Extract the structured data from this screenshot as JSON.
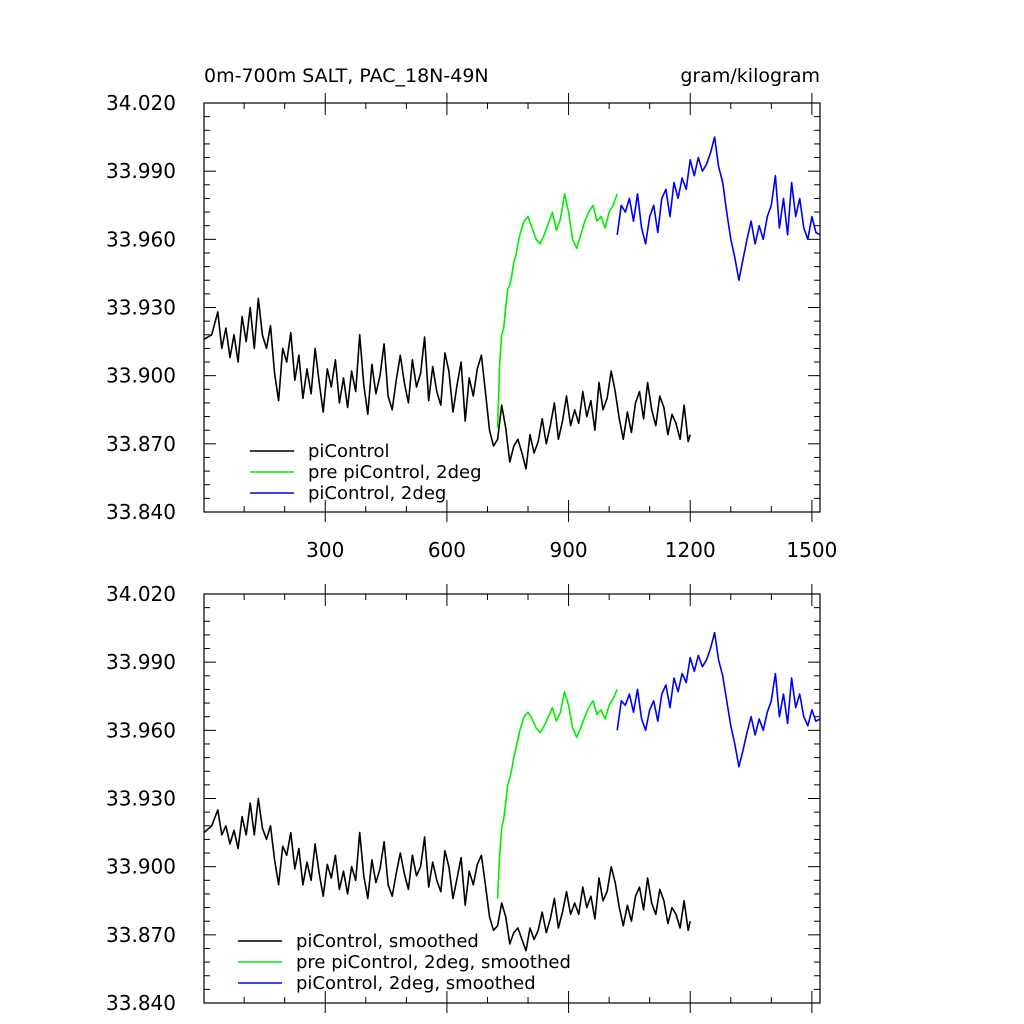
{
  "colors": {
    "piControl": "#000000",
    "prePiControl2deg": "#00ee00",
    "piControl2deg": "#0000ee"
  },
  "chart_data": [
    {
      "type": "line",
      "title_left": "0m-700m SALT, PAC_18N-49N",
      "title_right": "gram/kilogram",
      "xlim": [
        1,
        1520
      ],
      "ylim": [
        33.84,
        34.02
      ],
      "xticks": [
        300,
        600,
        900,
        1200,
        1500
      ],
      "yticks": [
        33.84,
        33.87,
        33.9,
        33.93,
        33.96,
        33.99,
        34.02
      ],
      "ytick_labels": [
        "33.840",
        "33.870",
        "33.900",
        "33.930",
        "33.960",
        "33.990",
        "34.020"
      ],
      "legend_position": "bottom-left",
      "series": [
        {
          "name": "piControl",
          "color": "#000000",
          "x": [
            1,
            20,
            35,
            45,
            55,
            65,
            75,
            85,
            95,
            105,
            115,
            125,
            135,
            145,
            155,
            165,
            175,
            185,
            195,
            205,
            215,
            225,
            235,
            245,
            255,
            265,
            275,
            285,
            295,
            305,
            315,
            325,
            335,
            345,
            355,
            365,
            375,
            385,
            395,
            405,
            415,
            425,
            435,
            445,
            455,
            465,
            475,
            485,
            495,
            505,
            515,
            525,
            535,
            545,
            555,
            565,
            575,
            585,
            595,
            605,
            615,
            625,
            635,
            645,
            655,
            665,
            675,
            685,
            695,
            705,
            715,
            725,
            735,
            745,
            755,
            765,
            775,
            785,
            795,
            805,
            815,
            825,
            835,
            845,
            855,
            865,
            875,
            885,
            895,
            905,
            915,
            925,
            935,
            945,
            955,
            965,
            975,
            985,
            995,
            1005,
            1015,
            1025,
            1035,
            1045,
            1055,
            1065,
            1075,
            1085,
            1095,
            1105,
            1115,
            1125,
            1135,
            1145,
            1155,
            1165,
            1175,
            1185,
            1195,
            1200
          ],
          "y": [
            33.916,
            33.918,
            33.928,
            33.912,
            33.921,
            33.908,
            33.918,
            33.906,
            33.926,
            33.915,
            33.93,
            33.912,
            33.934,
            33.918,
            33.912,
            33.922,
            33.901,
            33.889,
            33.912,
            33.906,
            33.919,
            33.898,
            33.909,
            33.89,
            33.903,
            33.892,
            33.912,
            33.897,
            33.884,
            33.903,
            33.895,
            33.907,
            33.888,
            33.899,
            33.886,
            33.902,
            33.893,
            33.918,
            33.896,
            33.883,
            33.905,
            33.892,
            33.9,
            33.914,
            33.891,
            33.885,
            33.898,
            33.909,
            33.897,
            33.888,
            33.907,
            33.895,
            33.901,
            33.917,
            33.889,
            33.904,
            33.893,
            33.887,
            33.91,
            33.902,
            33.884,
            33.896,
            33.906,
            33.88,
            33.899,
            33.891,
            33.903,
            33.909,
            33.893,
            33.876,
            33.869,
            33.872,
            33.887,
            33.877,
            33.862,
            33.869,
            33.872,
            33.866,
            33.859,
            33.874,
            33.866,
            33.871,
            33.881,
            33.87,
            33.878,
            33.888,
            33.872,
            33.88,
            33.891,
            33.878,
            33.885,
            33.879,
            33.893,
            33.882,
            33.889,
            33.876,
            33.897,
            33.885,
            33.89,
            33.902,
            33.893,
            33.881,
            33.872,
            33.884,
            33.875,
            33.888,
            33.893,
            33.881,
            33.897,
            33.885,
            33.878,
            33.891,
            33.886,
            33.874,
            33.883,
            33.879,
            33.872,
            33.887,
            33.871,
            33.874
          ]
        },
        {
          "name": "pre piControl, 2deg",
          "color": "#00ee00",
          "x": [
            725,
            730,
            735,
            740,
            745,
            750,
            755,
            760,
            765,
            770,
            775,
            780,
            785,
            790,
            800,
            810,
            820,
            830,
            840,
            850,
            860,
            870,
            880,
            890,
            900,
            910,
            920,
            930,
            940,
            950,
            960,
            970,
            980,
            990,
            1000,
            1010,
            1020
          ],
          "y": [
            33.877,
            33.905,
            33.918,
            33.921,
            33.93,
            33.938,
            33.94,
            33.944,
            33.95,
            33.953,
            33.958,
            33.962,
            33.965,
            33.968,
            33.97,
            33.965,
            33.96,
            33.958,
            33.962,
            33.967,
            33.972,
            33.964,
            33.969,
            33.98,
            33.972,
            33.96,
            33.956,
            33.962,
            33.968,
            33.972,
            33.975,
            33.968,
            33.97,
            33.965,
            33.972,
            33.975,
            33.98
          ]
        },
        {
          "name": "piControl, 2deg",
          "color": "#0000ee",
          "x": [
            1020,
            1030,
            1040,
            1050,
            1060,
            1070,
            1080,
            1090,
            1100,
            1110,
            1120,
            1130,
            1140,
            1150,
            1160,
            1170,
            1180,
            1190,
            1200,
            1210,
            1220,
            1230,
            1240,
            1250,
            1260,
            1270,
            1280,
            1290,
            1300,
            1310,
            1320,
            1330,
            1340,
            1350,
            1360,
            1370,
            1380,
            1390,
            1400,
            1410,
            1420,
            1430,
            1440,
            1450,
            1460,
            1470,
            1480,
            1490,
            1500,
            1510,
            1520
          ],
          "y": [
            33.962,
            33.975,
            33.972,
            33.978,
            33.968,
            33.98,
            33.965,
            33.958,
            33.97,
            33.975,
            33.963,
            33.978,
            33.982,
            33.97,
            33.985,
            33.978,
            33.987,
            33.982,
            33.995,
            33.988,
            33.996,
            33.99,
            33.993,
            33.998,
            34.005,
            33.992,
            33.985,
            33.972,
            33.96,
            33.952,
            33.942,
            33.951,
            33.96,
            33.968,
            33.958,
            33.966,
            33.96,
            33.97,
            33.975,
            33.988,
            33.965,
            33.978,
            33.962,
            33.985,
            33.97,
            33.978,
            33.965,
            33.96,
            33.97,
            33.963,
            33.962
          ]
        }
      ],
      "legend": [
        {
          "label": "piControl",
          "color": "#000000"
        },
        {
          "label": "pre piControl, 2deg",
          "color": "#00ee00"
        },
        {
          "label": "piControl, 2deg",
          "color": "#0000ee"
        }
      ]
    },
    {
      "type": "line",
      "xlim": [
        1,
        1520
      ],
      "ylim": [
        33.84,
        34.02
      ],
      "xticks": [
        300,
        600,
        900,
        1200,
        1500
      ],
      "yticks": [
        33.84,
        33.87,
        33.9,
        33.93,
        33.96,
        33.99,
        34.02
      ],
      "ytick_labels": [
        "33.840",
        "33.870",
        "33.900",
        "33.930",
        "33.960",
        "33.990",
        "34.020"
      ],
      "legend_position": "bottom-left",
      "series": [
        {
          "name": "piControl, smoothed",
          "color": "#000000",
          "x": [
            1,
            20,
            35,
            45,
            55,
            65,
            75,
            85,
            95,
            105,
            115,
            125,
            135,
            145,
            155,
            165,
            175,
            185,
            195,
            205,
            215,
            225,
            235,
            245,
            255,
            265,
            275,
            285,
            295,
            305,
            315,
            325,
            335,
            345,
            355,
            365,
            375,
            385,
            395,
            405,
            415,
            425,
            435,
            445,
            455,
            465,
            475,
            485,
            495,
            505,
            515,
            525,
            535,
            545,
            555,
            565,
            575,
            585,
            595,
            605,
            615,
            625,
            635,
            645,
            655,
            665,
            675,
            685,
            695,
            705,
            715,
            725,
            735,
            745,
            755,
            765,
            775,
            785,
            795,
            805,
            815,
            825,
            835,
            845,
            855,
            865,
            875,
            885,
            895,
            905,
            915,
            925,
            935,
            945,
            955,
            965,
            975,
            985,
            995,
            1005,
            1015,
            1025,
            1035,
            1045,
            1055,
            1065,
            1075,
            1085,
            1095,
            1105,
            1115,
            1125,
            1135,
            1145,
            1155,
            1165,
            1175,
            1185,
            1195,
            1200
          ],
          "y": [
            33.915,
            33.918,
            33.925,
            33.914,
            33.918,
            33.91,
            33.916,
            33.908,
            33.922,
            33.914,
            33.928,
            33.914,
            33.93,
            33.917,
            33.912,
            33.918,
            33.903,
            33.892,
            33.909,
            33.905,
            33.915,
            33.899,
            33.908,
            33.892,
            33.902,
            33.894,
            33.91,
            33.897,
            33.887,
            33.901,
            33.895,
            33.905,
            33.89,
            33.898,
            33.888,
            33.9,
            33.894,
            33.915,
            33.896,
            33.886,
            33.903,
            33.893,
            33.899,
            33.911,
            33.892,
            33.887,
            33.897,
            33.906,
            33.897,
            33.89,
            33.905,
            33.896,
            33.9,
            33.913,
            33.891,
            33.902,
            33.894,
            33.889,
            33.907,
            33.9,
            33.886,
            33.895,
            33.904,
            33.883,
            33.898,
            33.892,
            33.901,
            33.905,
            33.892,
            33.878,
            33.872,
            33.874,
            33.884,
            33.878,
            33.866,
            33.871,
            33.873,
            33.868,
            33.863,
            33.873,
            33.868,
            33.872,
            33.88,
            33.871,
            33.877,
            33.886,
            33.873,
            33.88,
            33.889,
            33.879,
            33.884,
            33.879,
            33.891,
            33.882,
            33.887,
            33.877,
            33.895,
            33.885,
            33.889,
            33.9,
            33.893,
            33.882,
            33.874,
            33.883,
            33.876,
            33.887,
            33.891,
            33.881,
            33.895,
            33.884,
            33.879,
            33.89,
            33.885,
            33.875,
            33.882,
            33.879,
            33.873,
            33.885,
            33.872,
            33.876
          ]
        },
        {
          "name": "pre piControl, 2deg, smoothed",
          "color": "#00ee00",
          "x": [
            725,
            730,
            735,
            740,
            745,
            750,
            755,
            760,
            765,
            770,
            775,
            780,
            785,
            790,
            800,
            810,
            820,
            830,
            840,
            850,
            860,
            870,
            880,
            890,
            900,
            910,
            920,
            930,
            940,
            950,
            960,
            970,
            980,
            990,
            1000,
            1010,
            1020
          ],
          "y": [
            33.886,
            33.905,
            33.917,
            33.921,
            33.928,
            33.936,
            33.939,
            33.943,
            33.948,
            33.952,
            33.956,
            33.96,
            33.963,
            33.966,
            33.968,
            33.965,
            33.961,
            33.959,
            33.962,
            33.966,
            33.97,
            33.964,
            33.968,
            33.977,
            33.971,
            33.961,
            33.957,
            33.961,
            33.966,
            33.97,
            33.973,
            33.967,
            33.969,
            33.965,
            33.971,
            33.974,
            33.978
          ]
        },
        {
          "name": "piControl, 2deg, smoothed",
          "color": "#0000ee",
          "x": [
            1020,
            1030,
            1040,
            1050,
            1060,
            1070,
            1080,
            1090,
            1100,
            1110,
            1120,
            1130,
            1140,
            1150,
            1160,
            1170,
            1180,
            1190,
            1200,
            1210,
            1220,
            1230,
            1240,
            1250,
            1260,
            1270,
            1280,
            1290,
            1300,
            1310,
            1320,
            1330,
            1340,
            1350,
            1360,
            1370,
            1380,
            1390,
            1400,
            1410,
            1420,
            1430,
            1440,
            1450,
            1460,
            1470,
            1480,
            1490,
            1500,
            1510,
            1520
          ],
          "y": [
            33.96,
            33.973,
            33.971,
            33.976,
            33.968,
            33.978,
            33.965,
            33.96,
            33.969,
            33.973,
            33.964,
            33.976,
            33.98,
            33.97,
            33.983,
            33.977,
            33.985,
            33.981,
            33.992,
            33.986,
            33.993,
            33.988,
            33.991,
            33.996,
            34.003,
            33.991,
            33.984,
            33.973,
            33.962,
            33.954,
            33.944,
            33.951,
            33.959,
            33.966,
            33.958,
            33.965,
            33.96,
            33.968,
            33.973,
            33.985,
            33.966,
            33.976,
            33.963,
            33.983,
            33.97,
            33.976,
            33.966,
            33.962,
            33.969,
            33.964,
            33.965
          ]
        }
      ],
      "legend": [
        {
          "label": "piControl, smoothed",
          "color": "#000000"
        },
        {
          "label": "pre piControl, 2deg, smoothed",
          "color": "#00ee00"
        },
        {
          "label": "piControl, 2deg, smoothed",
          "color": "#0000ee"
        }
      ]
    }
  ]
}
